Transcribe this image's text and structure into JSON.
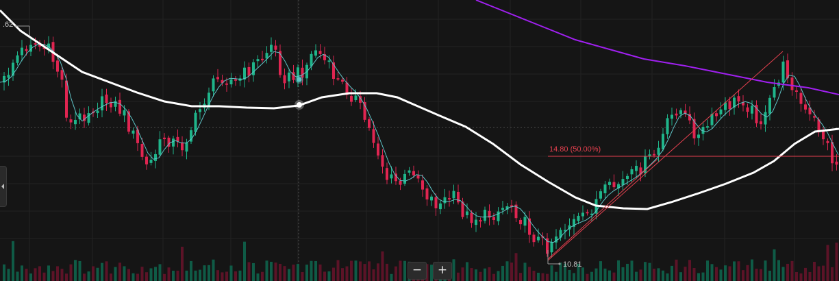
{
  "toolbar": {
    "zoom_out_label": "−",
    "zoom_in_label": "+"
  },
  "chart_data": {
    "type": "candlestick",
    "price_labels": {
      "top_left": ".62",
      "low_marker": "10.81"
    },
    "fib_level": {
      "label": "14.80 (50.00%)",
      "color": "#e5404f"
    },
    "colors": {
      "up": "#1fb58a",
      "down": "#e02551",
      "ma_white": "#ffffff",
      "ma_teal": "#5fc4c7",
      "ma_purple": "#a020f0",
      "trend_line": "#e5404f"
    }
  }
}
